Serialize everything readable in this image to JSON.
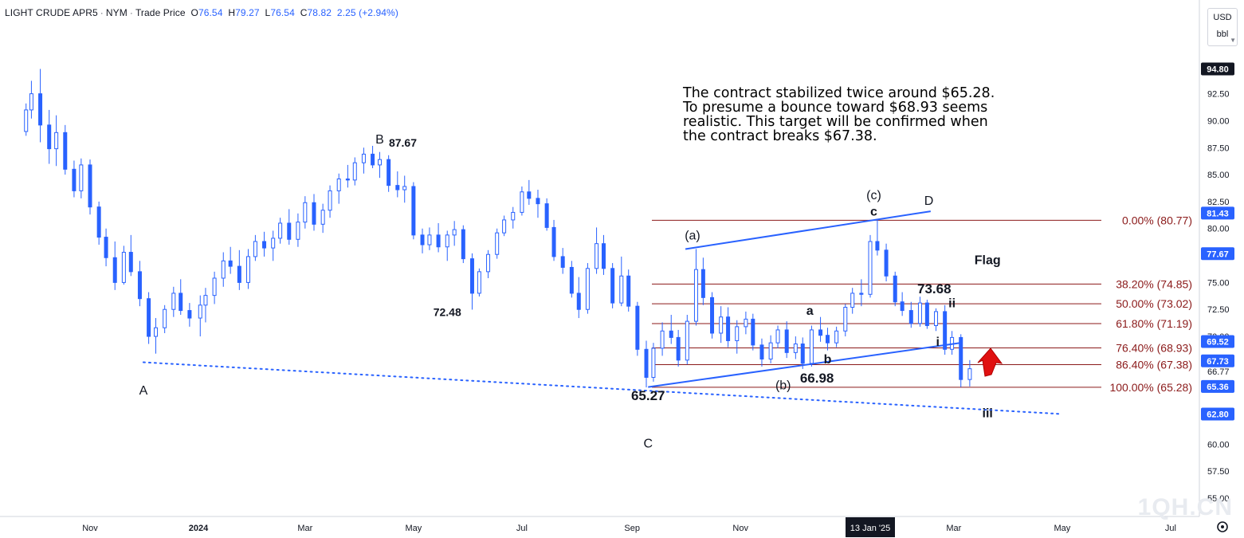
{
  "header": {
    "symbol": "LIGHT CRUDE APR5",
    "exchange": "NYM",
    "price_type": "Trade Price",
    "open_label": "O",
    "open": "76.54",
    "high_label": "H",
    "high": "79.27",
    "low_label": "L",
    "low": "76.54",
    "close_label": "C",
    "close": "78.82",
    "change": "2.25 (+2.94%)"
  },
  "scale": {
    "currency": "USD",
    "unit": "bbl"
  },
  "annotation_note": [
    "The contract stabilized twice around $65.28.",
    "To presume a bounce toward $68.93 seems",
    "realistic. This target will be confirmed when",
    "the contract breaks $67.38."
  ],
  "watermark": "1QH.CN",
  "colors": {
    "candle": "#2962ff",
    "trend_line": "#2962ff",
    "fib_line": "#8b1a1a",
    "fib_text": "#8b1a1a",
    "axis_text": "#131722",
    "price_badge_dark": "#131722",
    "price_badge_blue": "#2962ff",
    "arrow": "#e01010",
    "grid": "#f0f3fa"
  },
  "chart_data": {
    "type": "candlestick",
    "ylim": [
      53.5,
      97.5
    ],
    "y_ticks": [
      "92.50",
      "90.00",
      "87.50",
      "85.00",
      "82.50",
      "80.00",
      "75.00",
      "72.50",
      "70.00",
      "66.77",
      "60.00",
      "57.50",
      "55.00"
    ],
    "x_ticks": [
      "Nov",
      "2024",
      "Mar",
      "May",
      "Jul",
      "Sep",
      "Nov",
      "13 Jan '25",
      "Mar",
      "May",
      "Jul"
    ],
    "price_badges": [
      {
        "label": "94.80",
        "value": 94.8,
        "style": "dark"
      },
      {
        "label": "81.43",
        "value": 81.43,
        "style": "blue"
      },
      {
        "label": "77.67",
        "value": 77.67,
        "style": "blue"
      },
      {
        "label": "69.52",
        "value": 69.52,
        "style": "blue"
      },
      {
        "label": "67.73",
        "value": 67.73,
        "style": "blue"
      },
      {
        "label": "65.36",
        "value": 65.36,
        "style": "blue"
      },
      {
        "label": "62.80",
        "value": 62.8,
        "style": "blue"
      }
    ],
    "fib_levels": [
      {
        "label": "0.00% (80.77)",
        "value": 80.77
      },
      {
        "label": "38.20% (74.85)",
        "value": 74.85
      },
      {
        "label": "50.00% (73.02)",
        "value": 73.02
      },
      {
        "label": "61.80% (71.19)",
        "value": 71.19
      },
      {
        "label": "76.40% (68.93)",
        "value": 68.93
      },
      {
        "label": "86.40% (67.38)",
        "value": 67.38
      },
      {
        "label": "100.00% (65.28)",
        "value": 65.28
      }
    ],
    "wave_labels": [
      {
        "text": "A",
        "x": "2023-12-01",
        "y": 64.6
      },
      {
        "text": "B",
        "x": "2024-04-12",
        "y": 87.9
      },
      {
        "text": "87.67",
        "x": "2024-04-25",
        "y": 87.6
      },
      {
        "text": "72.48",
        "x": "2024-05-20",
        "y": 71.9
      },
      {
        "text": "C",
        "x": "2024-09-10",
        "y": 59.7
      },
      {
        "text": "65.27",
        "x": "2024-09-10",
        "y": 64.1
      },
      {
        "text": "(a)",
        "x": "2024-10-05",
        "y": 79.0
      },
      {
        "text": "(b)",
        "x": "2024-11-25",
        "y": 65.1
      },
      {
        "text": "66.98",
        "x": "2024-12-14",
        "y": 65.7
      },
      {
        "text": "a",
        "x": "2024-12-10",
        "y": 72.0
      },
      {
        "text": "b",
        "x": "2024-12-20",
        "y": 67.5
      },
      {
        "text": "(c)",
        "x": "2025-01-15",
        "y": 82.7
      },
      {
        "text": "c",
        "x": "2025-01-15",
        "y": 81.2
      },
      {
        "text": "D",
        "x": "2025-02-15",
        "y": 82.2
      },
      {
        "text": "73.68",
        "x": "2025-02-18",
        "y": 74.0
      },
      {
        "text": "ii",
        "x": "2025-02-28",
        "y": 72.7
      },
      {
        "text": "i",
        "x": "2025-02-20",
        "y": 69.1
      },
      {
        "text": "Flag",
        "x": "2025-03-20",
        "y": 76.7
      },
      {
        "text": "iii",
        "x": "2025-03-20",
        "y": 62.5
      }
    ],
    "lines": [
      {
        "name": "channel-upper",
        "style": "solid",
        "points": [
          [
            "2024-10-01",
            78.1
          ],
          [
            "2025-02-16",
            81.6
          ]
        ]
      },
      {
        "name": "channel-lower",
        "style": "solid",
        "points": [
          [
            "2024-09-10",
            65.3
          ],
          [
            "2025-03-05",
            69.4
          ]
        ]
      },
      {
        "name": "support-dotted",
        "style": "dotted",
        "points": [
          [
            "2023-12-01",
            67.6
          ],
          [
            "2025-05-01",
            62.8
          ]
        ]
      }
    ],
    "candles": [
      [
        "2023-09-26",
        89.0,
        91.6,
        88.6,
        91.0
      ],
      [
        "2023-09-29",
        91.0,
        93.7,
        90.2,
        92.5
      ],
      [
        "2023-10-04",
        92.5,
        94.8,
        88.0,
        89.6
      ],
      [
        "2023-10-09",
        89.6,
        91.0,
        86.0,
        87.4
      ],
      [
        "2023-10-13",
        87.4,
        90.5,
        85.8,
        88.9
      ],
      [
        "2023-10-18",
        88.9,
        89.6,
        85.0,
        85.5
      ],
      [
        "2023-10-23",
        85.5,
        86.3,
        82.9,
        83.5
      ],
      [
        "2023-10-27",
        83.5,
        86.5,
        82.8,
        85.9
      ],
      [
        "2023-11-01",
        85.9,
        86.4,
        81.3,
        82.0
      ],
      [
        "2023-11-06",
        82.0,
        82.5,
        78.5,
        79.2
      ],
      [
        "2023-11-10",
        79.2,
        80.0,
        76.5,
        77.3
      ],
      [
        "2023-11-15",
        77.3,
        78.8,
        74.3,
        75.0
      ],
      [
        "2023-11-20",
        75.0,
        78.4,
        74.8,
        77.8
      ],
      [
        "2023-11-24",
        77.8,
        79.4,
        75.6,
        76.0
      ],
      [
        "2023-11-29",
        76.0,
        77.0,
        72.8,
        73.5
      ],
      [
        "2023-12-04",
        73.5,
        74.1,
        69.3,
        70.0
      ],
      [
        "2023-12-08",
        70.0,
        71.7,
        68.4,
        70.8
      ],
      [
        "2023-12-13",
        70.8,
        72.9,
        70.3,
        72.5
      ],
      [
        "2023-12-18",
        72.5,
        74.6,
        71.8,
        74.0
      ],
      [
        "2023-12-22",
        74.0,
        75.3,
        72.0,
        72.4
      ],
      [
        "2023-12-27",
        72.4,
        73.1,
        70.9,
        71.7
      ],
      [
        "2024-01-02",
        71.7,
        73.8,
        70.0,
        72.9
      ],
      [
        "2024-01-05",
        72.9,
        74.5,
        71.3,
        73.8
      ],
      [
        "2024-01-10",
        73.8,
        76.0,
        73.0,
        75.4
      ],
      [
        "2024-01-15",
        75.4,
        77.8,
        74.6,
        77.0
      ],
      [
        "2024-01-19",
        77.0,
        78.3,
        75.8,
        76.5
      ],
      [
        "2024-01-24",
        76.5,
        78.0,
        74.3,
        75.0
      ],
      [
        "2024-01-29",
        75.0,
        78.1,
        74.4,
        77.4
      ],
      [
        "2024-02-02",
        77.4,
        79.4,
        77.0,
        78.8
      ],
      [
        "2024-02-07",
        78.8,
        79.7,
        77.4,
        78.2
      ],
      [
        "2024-02-12",
        78.2,
        79.8,
        77.0,
        79.1
      ],
      [
        "2024-02-16",
        79.1,
        81.0,
        78.6,
        80.5
      ],
      [
        "2024-02-21",
        80.5,
        81.8,
        78.5,
        79.0
      ],
      [
        "2024-02-26",
        79.0,
        81.4,
        78.3,
        80.6
      ],
      [
        "2024-03-01",
        80.6,
        83.0,
        80.0,
        82.4
      ],
      [
        "2024-03-06",
        82.4,
        83.2,
        79.8,
        80.4
      ],
      [
        "2024-03-11",
        80.4,
        82.3,
        79.6,
        81.7
      ],
      [
        "2024-03-15",
        81.7,
        84.0,
        81.0,
        83.5
      ],
      [
        "2024-03-20",
        83.5,
        85.1,
        82.3,
        84.6
      ],
      [
        "2024-03-25",
        84.6,
        85.9,
        83.8,
        84.5
      ],
      [
        "2024-03-29",
        84.5,
        86.6,
        84.0,
        86.1
      ],
      [
        "2024-04-03",
        86.1,
        87.5,
        85.1,
        86.9
      ],
      [
        "2024-04-08",
        86.9,
        87.67,
        85.6,
        85.9
      ],
      [
        "2024-04-12",
        85.9,
        87.1,
        84.7,
        86.4
      ],
      [
        "2024-04-17",
        86.4,
        86.8,
        83.4,
        84.0
      ],
      [
        "2024-04-22",
        84.0,
        85.3,
        82.9,
        83.6
      ],
      [
        "2024-04-26",
        83.6,
        84.9,
        82.4,
        83.9
      ],
      [
        "2024-05-01",
        83.9,
        84.3,
        79.0,
        79.4
      ],
      [
        "2024-05-06",
        79.4,
        80.0,
        77.7,
        78.5
      ],
      [
        "2024-05-10",
        78.5,
        80.1,
        78.0,
        79.4
      ],
      [
        "2024-05-15",
        79.4,
        80.5,
        77.8,
        78.3
      ],
      [
        "2024-05-20",
        78.3,
        79.8,
        77.0,
        79.4
      ],
      [
        "2024-05-24",
        79.4,
        80.7,
        78.4,
        79.9
      ],
      [
        "2024-05-29",
        79.9,
        80.3,
        76.8,
        77.2
      ],
      [
        "2024-06-03",
        77.2,
        77.7,
        72.48,
        74.0
      ],
      [
        "2024-06-07",
        74.0,
        76.3,
        73.7,
        76.0
      ],
      [
        "2024-06-12",
        76.0,
        78.0,
        75.4,
        77.6
      ],
      [
        "2024-06-17",
        77.6,
        80.0,
        77.2,
        79.6
      ],
      [
        "2024-06-21",
        79.6,
        81.2,
        79.3,
        80.8
      ],
      [
        "2024-06-26",
        80.8,
        82.0,
        80.0,
        81.5
      ],
      [
        "2024-07-01",
        81.5,
        83.9,
        81.2,
        83.4
      ],
      [
        "2024-07-05",
        83.4,
        84.5,
        82.2,
        82.8
      ],
      [
        "2024-07-10",
        82.8,
        83.6,
        81.0,
        82.3
      ],
      [
        "2024-07-15",
        82.3,
        82.8,
        79.8,
        80.1
      ],
      [
        "2024-07-19",
        80.1,
        80.8,
        77.0,
        77.4
      ],
      [
        "2024-07-24",
        77.4,
        78.2,
        75.8,
        76.4
      ],
      [
        "2024-07-29",
        76.4,
        77.0,
        73.6,
        74.0
      ],
      [
        "2024-08-02",
        74.0,
        75.5,
        71.7,
        72.5
      ],
      [
        "2024-08-07",
        72.5,
        76.8,
        72.1,
        76.3
      ],
      [
        "2024-08-12",
        76.3,
        80.1,
        75.8,
        78.6
      ],
      [
        "2024-08-16",
        78.6,
        79.4,
        75.7,
        76.3
      ],
      [
        "2024-08-21",
        76.3,
        76.8,
        72.6,
        73.1
      ],
      [
        "2024-08-26",
        73.1,
        77.4,
        72.8,
        75.6
      ],
      [
        "2024-08-30",
        75.6,
        76.2,
        72.3,
        72.8
      ],
      [
        "2024-09-04",
        72.8,
        73.2,
        68.2,
        68.8
      ],
      [
        "2024-09-09",
        68.8,
        69.6,
        65.27,
        66.2
      ],
      [
        "2024-09-13",
        66.2,
        69.4,
        65.8,
        68.9
      ],
      [
        "2024-09-18",
        68.9,
        71.3,
        68.2,
        70.5
      ],
      [
        "2024-09-23",
        70.5,
        72.0,
        69.3,
        69.9
      ],
      [
        "2024-09-27",
        69.9,
        70.6,
        67.2,
        67.8
      ],
      [
        "2024-10-02",
        67.8,
        72.0,
        67.4,
        71.4
      ],
      [
        "2024-10-07",
        71.4,
        78.1,
        71.0,
        76.2
      ],
      [
        "2024-10-11",
        76.2,
        77.3,
        72.9,
        73.6
      ],
      [
        "2024-10-16",
        73.6,
        74.1,
        69.8,
        70.3
      ],
      [
        "2024-10-21",
        70.3,
        72.8,
        69.4,
        71.8
      ],
      [
        "2024-10-25",
        71.8,
        72.7,
        69.0,
        69.6
      ],
      [
        "2024-10-30",
        69.6,
        71.5,
        68.4,
        70.9
      ],
      [
        "2024-11-04",
        70.9,
        72.3,
        70.2,
        71.6
      ],
      [
        "2024-11-08",
        71.6,
        72.1,
        68.7,
        69.2
      ],
      [
        "2024-11-13",
        69.2,
        69.8,
        67.2,
        67.9
      ],
      [
        "2024-11-18",
        67.9,
        70.1,
        67.5,
        69.4
      ],
      [
        "2024-11-22",
        69.4,
        71.0,
        68.9,
        70.6
      ],
      [
        "2024-11-27",
        70.6,
        71.4,
        68.0,
        68.5
      ],
      [
        "2024-12-02",
        68.5,
        70.0,
        67.9,
        69.3
      ],
      [
        "2024-12-06",
        69.3,
        69.9,
        66.98,
        67.5
      ],
      [
        "2024-12-11",
        67.5,
        71.0,
        67.2,
        70.6
      ],
      [
        "2024-12-16",
        70.6,
        71.8,
        69.5,
        70.1
      ],
      [
        "2024-12-20",
        70.1,
        70.8,
        68.7,
        69.4
      ],
      [
        "2024-12-25",
        69.4,
        70.9,
        69.0,
        70.5
      ],
      [
        "2024-12-30",
        70.5,
        73.0,
        70.0,
        72.7
      ],
      [
        "2025-01-03",
        72.7,
        74.5,
        72.1,
        74.0
      ],
      [
        "2025-01-08",
        74.0,
        75.3,
        72.8,
        73.9
      ],
      [
        "2025-01-13",
        73.9,
        79.4,
        73.6,
        78.8
      ],
      [
        "2025-01-17",
        78.8,
        80.77,
        77.5,
        78.0
      ],
      [
        "2025-01-22",
        78.0,
        78.6,
        75.1,
        75.6
      ],
      [
        "2025-01-27",
        75.6,
        76.0,
        72.8,
        73.2
      ],
      [
        "2025-01-31",
        73.2,
        74.1,
        71.9,
        72.4
      ],
      [
        "2025-02-05",
        72.4,
        73.2,
        70.8,
        71.2
      ],
      [
        "2025-02-10",
        71.2,
        73.68,
        70.9,
        73.1
      ],
      [
        "2025-02-14",
        73.1,
        73.4,
        70.7,
        71.0
      ],
      [
        "2025-02-19",
        71.0,
        72.6,
        70.5,
        72.3
      ],
      [
        "2025-02-24",
        72.3,
        72.9,
        68.3,
        68.8
      ],
      [
        "2025-02-28",
        68.8,
        70.5,
        68.3,
        69.9
      ],
      [
        "2025-03-05",
        69.9,
        70.2,
        65.3,
        66.0
      ],
      [
        "2025-03-10",
        66.0,
        67.8,
        65.36,
        67.0
      ]
    ]
  }
}
